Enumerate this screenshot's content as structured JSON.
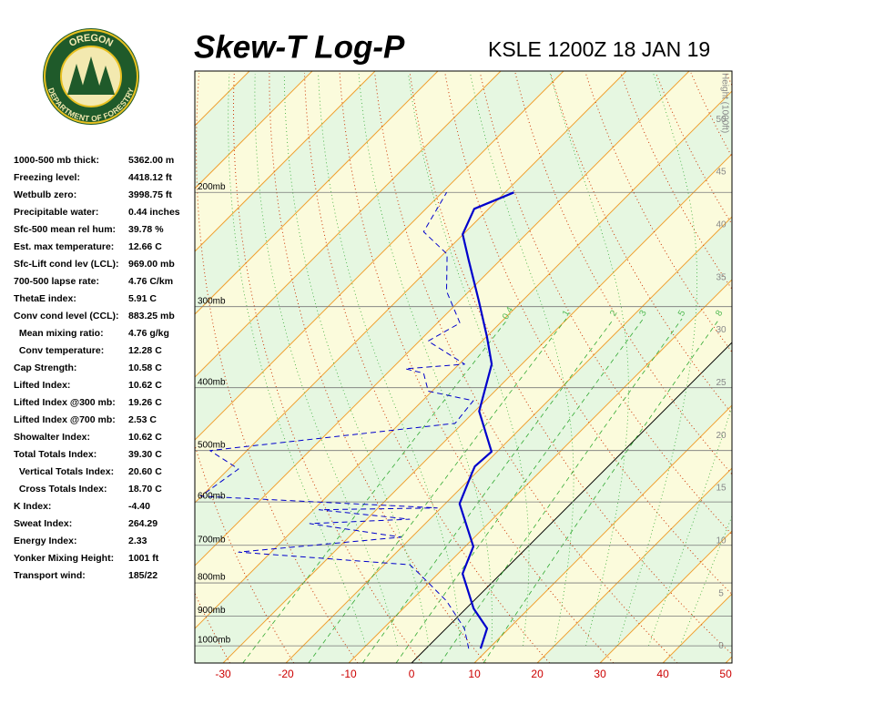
{
  "logo": {
    "top": "OREGON",
    "bottom": "DEPARTMENT OF FORESTRY"
  },
  "indices": [
    {
      "label": "1000-500 mb thick:",
      "value": "5362.00 m"
    },
    {
      "label": "Freezing level:",
      "value": "4418.12 ft"
    },
    {
      "label": "Wetbulb zero:",
      "value": "3998.75 ft"
    },
    {
      "label": "Precipitable water:",
      "value": "0.44 inches"
    },
    {
      "label": "Sfc-500 mean rel hum:",
      "value": "39.78 %"
    },
    {
      "label": "Est. max temperature:",
      "value": "12.66 C"
    },
    {
      "label": "Sfc-Lift cond lev (LCL):",
      "value": "969.00 mb"
    },
    {
      "label": "700-500 lapse rate:",
      "value": "4.76 C/km"
    },
    {
      "label": "ThetaE index:",
      "value": "5.91 C"
    },
    {
      "label": "Conv cond level (CCL):",
      "value": "883.25 mb"
    },
    {
      "label": "  Mean mixing ratio:",
      "value": "4.76 g/kg"
    },
    {
      "label": "  Conv temperature:",
      "value": "12.28 C"
    },
    {
      "label": "Cap Strength:",
      "value": "10.58 C"
    },
    {
      "label": "Lifted Index:",
      "value": "10.62 C"
    },
    {
      "label": "Lifted Index @300 mb:",
      "value": "19.26 C"
    },
    {
      "label": "Lifted Index @700 mb:",
      "value": "2.53 C"
    },
    {
      "label": "Showalter Index:",
      "value": "10.62 C"
    },
    {
      "label": "Total Totals Index:",
      "value": "39.30 C"
    },
    {
      "label": "  Vertical Totals Index:",
      "value": "20.60 C"
    },
    {
      "label": "  Cross Totals Index:",
      "value": "18.70 C"
    },
    {
      "label": "K Index:",
      "value": "-4.40"
    },
    {
      "label": "Sweat Index:",
      "value": "264.29"
    },
    {
      "label": "Energy Index:",
      "value": "2.33"
    },
    {
      "label": "Yonker Mixing Height:",
      "value": "1001 ft"
    },
    {
      "label": "Transport wind:",
      "value": "185/22"
    }
  ],
  "chart_data": {
    "type": "skewt",
    "title": "Skew-T Log-P",
    "subtitle": "KSLE 1200Z 18 JAN 19",
    "xlim": [
      -34.5,
      51
    ],
    "xticks": [
      -30,
      -20,
      -10,
      0,
      10,
      20,
      30,
      40,
      50
    ],
    "ylim": [
      1063,
      130
    ],
    "log_y": true,
    "yticks": [
      {
        "value": 1000,
        "label": "1000mb"
      },
      {
        "value": 900,
        "label": "900mb"
      },
      {
        "value": 800,
        "label": "800mb"
      },
      {
        "value": 700,
        "label": "700mb"
      },
      {
        "value": 600,
        "label": "600mb"
      },
      {
        "value": 500,
        "label": "500mb"
      },
      {
        "value": 400,
        "label": "400mb"
      },
      {
        "value": 300,
        "label": "300mb"
      },
      {
        "value": 200,
        "label": "200mb"
      }
    ],
    "y2label": "Height (1000ft)",
    "y2lim": [
      -1.6,
      54.6
    ],
    "y2ticks": [
      0,
      5,
      10,
      15,
      20,
      25,
      30,
      35,
      40,
      45,
      50
    ],
    "mixing_ratios": [
      0.4,
      1,
      2,
      3,
      5,
      8
    ],
    "series": [
      {
        "color": "#0000cc",
        "style": "solid",
        "pressure": [
          1010,
          940,
          876,
          774,
          703,
          604,
          542,
          529,
          502,
          435,
          368,
          334,
          293,
          254,
          232,
          212,
          200
        ],
        "values": [
          8.7,
          6.5,
          1.2,
          -6.1,
          -8.7,
          -17.7,
          -20.6,
          -21.2,
          -20.9,
          -29.3,
          -34.8,
          -39.9,
          -47.1,
          -55.1,
          -60.1,
          -62.3,
          -58.6
        ]
      },
      {
        "color": "#0000cc",
        "style": "dashed",
        "pressure": [
          1010,
          940,
          853,
          774,
          750,
          717,
          680,
          648,
          638,
          617,
          613,
          588,
          534,
          500,
          454,
          419,
          405,
          380,
          374,
          368,
          339,
          318,
          284,
          249,
          230,
          200
        ],
        "values": [
          6.8,
          2.9,
          -4.3,
          -13.0,
          -15.9,
          -45.2,
          -21.7,
          -38.4,
          -23.2,
          -39.1,
          -20.6,
          -60.1,
          -58.4,
          -65.9,
          -31.2,
          -31.9,
          -40.6,
          -44.2,
          -47.8,
          -39.1,
          -48.6,
          -46.4,
          -53.6,
          -59.4,
          -66.7,
          -69.3
        ]
      }
    ]
  }
}
